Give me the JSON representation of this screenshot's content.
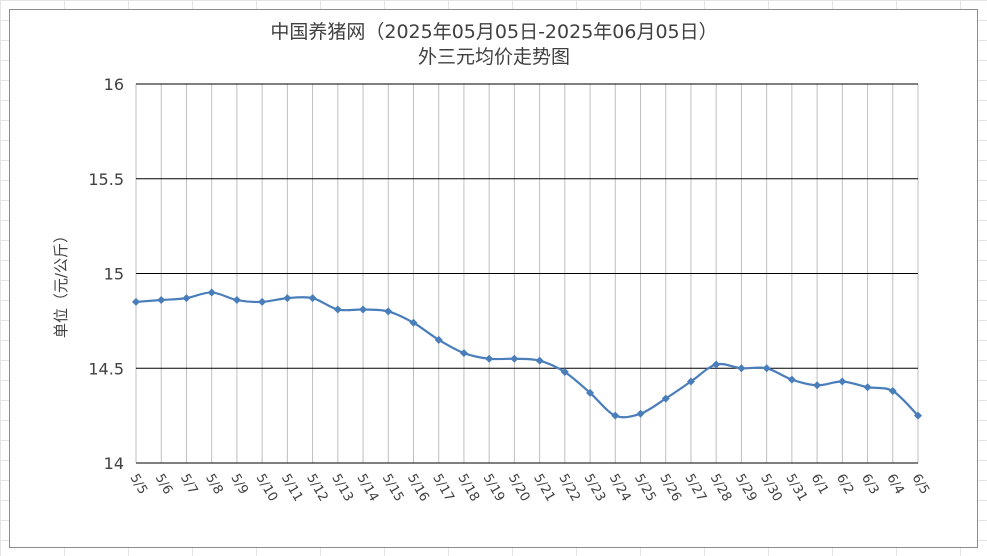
{
  "colors": {
    "series": "#4a7ebb",
    "gridline": "#000000",
    "vertical_line": "#bfbfbf",
    "text": "#404040",
    "frame": "#8c8c8c"
  },
  "chart_data": {
    "type": "line",
    "title_line1": "中国养猪网（2025年05月05日-2025年06月05日）",
    "title_line2": "外三元均价走势图",
    "xlabel": "",
    "ylabel": "单位（元/公斤）",
    "ylim": [
      14,
      16
    ],
    "yticks": [
      "14",
      "14.5",
      "15",
      "15.5",
      "16"
    ],
    "grid": true,
    "legend": "none",
    "categories": [
      "5/5",
      "5/6",
      "5/7",
      "5/8",
      "5/9",
      "5/10",
      "5/11",
      "5/12",
      "5/13",
      "5/14",
      "5/15",
      "5/16",
      "5/17",
      "5/18",
      "5/19",
      "5/20",
      "5/21",
      "5/22",
      "5/23",
      "5/24",
      "5/25",
      "5/26",
      "5/27",
      "5/28",
      "5/29",
      "5/30",
      "5/31",
      "6/1",
      "6/2",
      "6/3",
      "6/4",
      "6/5"
    ],
    "series": [
      {
        "name": "",
        "marker": "diamond",
        "values": [
          14.85,
          14.86,
          14.87,
          14.9,
          14.86,
          14.85,
          14.87,
          14.87,
          14.81,
          14.81,
          14.8,
          14.74,
          14.65,
          14.58,
          14.55,
          14.55,
          14.54,
          14.48,
          14.37,
          14.25,
          14.26,
          14.34,
          14.43,
          14.52,
          14.5,
          14.5,
          14.44,
          14.41,
          14.43,
          14.4,
          14.38,
          14.25
        ]
      }
    ]
  }
}
